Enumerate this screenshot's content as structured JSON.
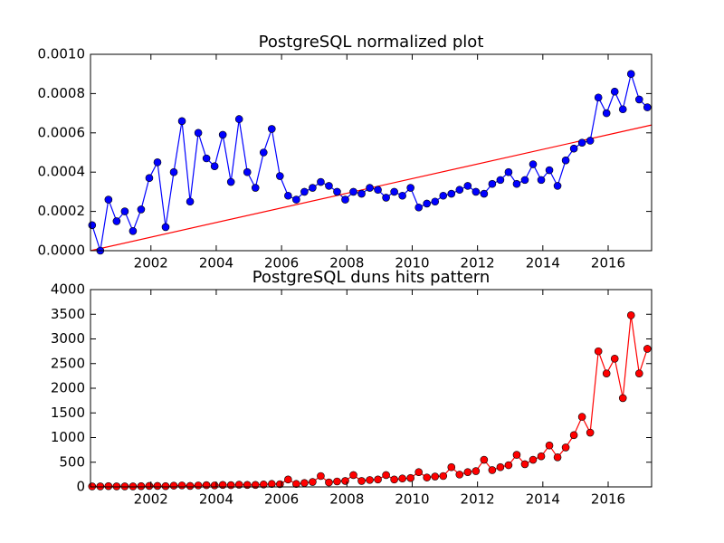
{
  "chart_data": [
    {
      "type": "line",
      "title": "PostgreSQL normalized plot",
      "x": [
        2000.2,
        2000.45,
        2000.7,
        2000.95,
        2001.2,
        2001.45,
        2001.7,
        2001.95,
        2002.2,
        2002.45,
        2002.7,
        2002.95,
        2003.2,
        2003.45,
        2003.7,
        2003.95,
        2004.2,
        2004.45,
        2004.7,
        2004.95,
        2005.2,
        2005.45,
        2005.7,
        2005.95,
        2006.2,
        2006.45,
        2006.7,
        2006.95,
        2007.2,
        2007.45,
        2007.7,
        2007.95,
        2008.2,
        2008.45,
        2008.7,
        2008.95,
        2009.2,
        2009.45,
        2009.7,
        2009.95,
        2010.2,
        2010.45,
        2010.7,
        2010.95,
        2011.2,
        2011.45,
        2011.7,
        2011.95,
        2012.2,
        2012.45,
        2012.7,
        2012.95,
        2013.2,
        2013.45,
        2013.7,
        2013.95,
        2014.2,
        2014.45,
        2014.7,
        2014.95,
        2015.2,
        2015.45,
        2015.7,
        2015.95,
        2016.2,
        2016.45,
        2016.7,
        2016.95,
        2017.2
      ],
      "series": [
        {
          "color": "#0000ff",
          "marker": true,
          "values": [
            0.00013,
            0.0,
            0.00026,
            0.00015,
            0.0002,
            0.0001,
            0.00021,
            0.00037,
            0.00045,
            0.00012,
            0.0004,
            0.00066,
            0.00025,
            0.0006,
            0.00047,
            0.00043,
            0.00059,
            0.00035,
            0.00067,
            0.0004,
            0.00032,
            0.0005,
            0.00062,
            0.00038,
            0.00028,
            0.00026,
            0.0003,
            0.00032,
            0.00035,
            0.00033,
            0.0003,
            0.00026,
            0.0003,
            0.00029,
            0.00032,
            0.00031,
            0.00027,
            0.0003,
            0.00028,
            0.00032,
            0.00022,
            0.00024,
            0.00025,
            0.00028,
            0.00029,
            0.00031,
            0.00033,
            0.0003,
            0.00029,
            0.00034,
            0.00036,
            0.0004,
            0.00034,
            0.00036,
            0.00044,
            0.00036,
            0.00041,
            0.00033,
            0.00046,
            0.00052,
            0.00055,
            0.00056,
            0.00078,
            0.0007,
            0.00081,
            0.00072,
            0.0009,
            0.00077,
            0.00073
          ]
        }
      ],
      "fit": {
        "color": "#ff0000",
        "x": [
          2000.15,
          2017.33
        ],
        "values": [
          0.0,
          0.00064
        ]
      },
      "xlim": [
        2000.15,
        2017.33
      ],
      "xticks": [
        2002,
        2004,
        2006,
        2008,
        2010,
        2012,
        2014,
        2016
      ],
      "ylim": [
        0,
        0.001
      ],
      "yticks": [
        {
          "value": 0,
          "label": "0.0000"
        },
        {
          "value": 0.0002,
          "label": "0.0002"
        },
        {
          "value": 0.0004,
          "label": "0.0004"
        },
        {
          "value": 0.0006,
          "label": "0.0006"
        },
        {
          "value": 0.0008,
          "label": "0.0008"
        },
        {
          "value": 0.001,
          "label": "0.0010"
        }
      ]
    },
    {
      "type": "line",
      "title": "PostgreSQL duns hits pattern",
      "x": [
        2000.2,
        2000.45,
        2000.7,
        2000.95,
        2001.2,
        2001.45,
        2001.7,
        2001.95,
        2002.2,
        2002.45,
        2002.7,
        2002.95,
        2003.2,
        2003.45,
        2003.7,
        2003.95,
        2004.2,
        2004.45,
        2004.7,
        2004.95,
        2005.2,
        2005.45,
        2005.7,
        2005.95,
        2006.2,
        2006.45,
        2006.7,
        2006.95,
        2007.2,
        2007.45,
        2007.7,
        2007.95,
        2008.2,
        2008.45,
        2008.7,
        2008.95,
        2009.2,
        2009.45,
        2009.7,
        2009.95,
        2010.2,
        2010.45,
        2010.7,
        2010.95,
        2011.2,
        2011.45,
        2011.7,
        2011.95,
        2012.2,
        2012.45,
        2012.7,
        2012.95,
        2013.2,
        2013.45,
        2013.7,
        2013.95,
        2014.2,
        2014.45,
        2014.7,
        2014.95,
        2015.2,
        2015.45,
        2015.7,
        2015.95,
        2016.2,
        2016.45,
        2016.7,
        2016.95,
        2017.2
      ],
      "series": [
        {
          "color": "#ff0000",
          "marker": true,
          "values": [
            10,
            10,
            15,
            10,
            10,
            10,
            15,
            20,
            20,
            15,
            25,
            30,
            20,
            30,
            35,
            30,
            40,
            35,
            45,
            40,
            40,
            50,
            60,
            55,
            150,
            60,
            80,
            100,
            220,
            90,
            110,
            120,
            240,
            120,
            140,
            150,
            240,
            150,
            170,
            180,
            300,
            190,
            210,
            220,
            400,
            250,
            300,
            320,
            550,
            340,
            400,
            440,
            650,
            460,
            550,
            620,
            840,
            600,
            800,
            1050,
            1420,
            1100,
            2750,
            2300,
            2600,
            1800,
            3480,
            2300,
            2800
          ]
        }
      ],
      "xlim": [
        2000.15,
        2017.33
      ],
      "xticks": [
        2002,
        2004,
        2006,
        2008,
        2010,
        2012,
        2014,
        2016
      ],
      "ylim": [
        0,
        4000
      ],
      "yticks": [
        0,
        500,
        1000,
        1500,
        2000,
        2500,
        3000,
        3500,
        4000
      ]
    }
  ]
}
